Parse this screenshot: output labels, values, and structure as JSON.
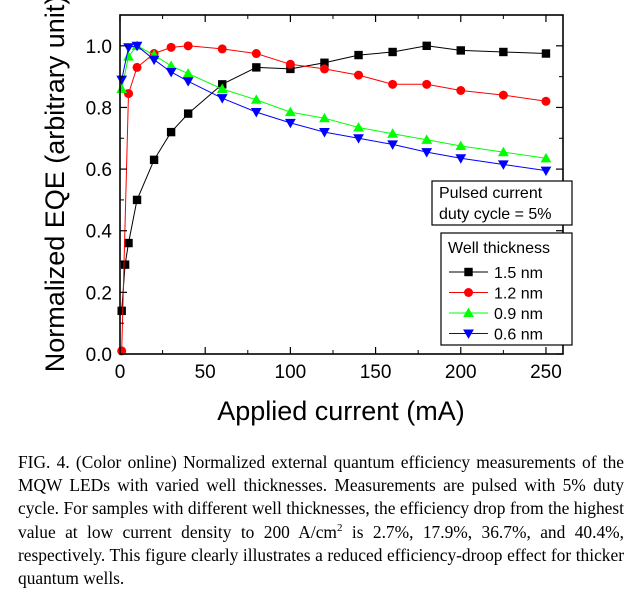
{
  "chart_data": {
    "type": "line",
    "title": "",
    "xlabel": "Applied current (mA)",
    "ylabel": "Normalized EQE (arbitrary unit)",
    "xlim": [
      0,
      260
    ],
    "ylim": [
      0,
      1.1
    ],
    "x_ticks": [
      0,
      50,
      100,
      150,
      200,
      250
    ],
    "y_ticks": [
      0.0,
      0.2,
      0.4,
      0.6,
      0.8,
      1.0
    ],
    "x_tick_labels": [
      "0",
      "50",
      "100",
      "150",
      "200",
      "250"
    ],
    "y_tick_labels": [
      "0.0",
      "0.2",
      "0.4",
      "0.6",
      "0.8",
      "1.0"
    ],
    "grid": false,
    "annotation": [
      "Pulsed current",
      "duty cycle = 5%"
    ],
    "legend": {
      "title": "Well thickness",
      "placement": "bottom-right"
    },
    "series": [
      {
        "name": "1.5 nm",
        "color": "#000000",
        "marker": "square",
        "x": [
          1,
          3,
          5,
          10,
          20,
          30,
          40,
          60,
          80,
          100,
          120,
          140,
          160,
          180,
          200,
          225,
          250
        ],
        "y": [
          0.14,
          0.29,
          0.36,
          0.5,
          0.63,
          0.72,
          0.78,
          0.875,
          0.93,
          0.925,
          0.945,
          0.97,
          0.98,
          1.0,
          0.985,
          0.98,
          0.975
        ]
      },
      {
        "name": "1.2 nm",
        "color": "#ff0000",
        "marker": "circle",
        "x": [
          1,
          5,
          10,
          20,
          30,
          40,
          60,
          80,
          100,
          120,
          140,
          160,
          180,
          200,
          225,
          250
        ],
        "y": [
          0.01,
          0.845,
          0.93,
          0.975,
          0.995,
          1.0,
          0.99,
          0.975,
          0.94,
          0.925,
          0.905,
          0.875,
          0.875,
          0.855,
          0.84,
          0.82
        ]
      },
      {
        "name": "0.9 nm",
        "color": "#00ff00",
        "marker": "triangle-up",
        "x": [
          1,
          5,
          10,
          20,
          30,
          40,
          60,
          80,
          100,
          120,
          140,
          160,
          180,
          200,
          225,
          250
        ],
        "y": [
          0.86,
          0.965,
          1.0,
          0.97,
          0.935,
          0.91,
          0.86,
          0.825,
          0.785,
          0.765,
          0.735,
          0.715,
          0.695,
          0.675,
          0.655,
          0.635
        ]
      },
      {
        "name": "0.6 nm",
        "color": "#0000ff",
        "marker": "triangle-down",
        "x": [
          1,
          5,
          10,
          20,
          30,
          40,
          60,
          80,
          100,
          120,
          140,
          160,
          180,
          200,
          225,
          250
        ],
        "y": [
          0.89,
          0.995,
          1.0,
          0.955,
          0.915,
          0.885,
          0.83,
          0.785,
          0.75,
          0.72,
          0.7,
          0.68,
          0.655,
          0.635,
          0.615,
          0.595
        ]
      }
    ]
  },
  "caption": {
    "lead": "FIG. 4. (Color online) Normalized external quantum efficiency measurements of the MQW LEDs with varied well thicknesses. Measurements are pulsed with 5% duty cycle. For samples with different well thicknesses, the efficiency drop from the highest value at low current density to 200 A/cm",
    "superscript": "2",
    "tail": " is 2.7%, 17.9%, 36.7%, and 40.4%, respectively. This figure clearly illustrates a reduced efficiency-droop effect for thicker quantum wells."
  }
}
